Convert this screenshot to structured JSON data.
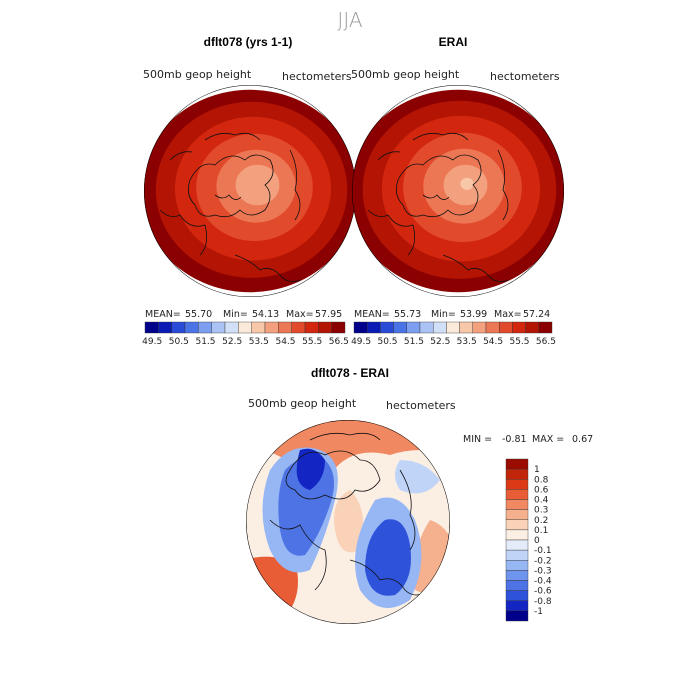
{
  "figure_title": "JJA",
  "panels": [
    {
      "id": "model",
      "title": "dflt078 (yrs 1-1)",
      "variable": "500mb geop height",
      "units": "hectometers",
      "stats": {
        "mean_label": "MEAN=",
        "mean": "55.70",
        "min_label": "Min=",
        "min": "54.13",
        "max_label": "Max=",
        "max": "57.95"
      }
    },
    {
      "id": "obs",
      "title": "ERAI",
      "variable": "500mb geop height",
      "units": "hectometers",
      "stats": {
        "mean_label": "MEAN=",
        "mean": "55.73",
        "min_label": "Min=",
        "min": "53.99",
        "max_label": "Max=",
        "max": "57.24"
      }
    },
    {
      "id": "diff",
      "title": "dflt078 - ERAI",
      "variable": "500mb geop height",
      "units": "hectometers",
      "stats": {
        "min_label": "MIN =",
        "min": "-0.81",
        "max_label": "MAX =",
        "max": "0.67"
      }
    }
  ],
  "colorbar_abs": {
    "colors": [
      "#00008b",
      "#0a1ab5",
      "#2a4bd7",
      "#4a73e6",
      "#7c9ef0",
      "#aac2f4",
      "#d2e0f7",
      "#fbe9da",
      "#f7c7a8",
      "#f2a07e",
      "#ec7754",
      "#e24a2c",
      "#d2260f",
      "#b31404",
      "#8b0000"
    ],
    "ticks": [
      "49.5",
      "50.5",
      "51.5",
      "52.5",
      "53.5",
      "54.5",
      "55.5",
      "56.5"
    ]
  },
  "colorbar_diff": {
    "colors": [
      "#00008b",
      "#1326c4",
      "#2e52d9",
      "#4d73e5",
      "#6f94ee",
      "#97b6f4",
      "#c0d4f8",
      "#e4ecf9",
      "#fbefe4",
      "#f9d2b8",
      "#f5b08d",
      "#f08862",
      "#e95d36",
      "#dc3a16",
      "#c22509",
      "#9b0c00"
    ],
    "ticks": [
      "1",
      "0.8",
      "0.6",
      "0.4",
      "0.3",
      "0.2",
      "0.1",
      "0",
      "-0.1",
      "-0.2",
      "-0.3",
      "-0.4",
      "-0.6",
      "-0.8",
      "-1"
    ]
  },
  "maps": {
    "model_field": [
      {
        "rx": 1.0,
        "color": "#8b0000"
      },
      {
        "rx": 0.87,
        "color": "#b31404"
      },
      {
        "rx": 0.71,
        "color": "#d2260f"
      },
      {
        "rx": 0.53,
        "color": "#e24a2c"
      },
      {
        "rx": 0.36,
        "color": "#ec7754"
      },
      {
        "rx": 0.2,
        "color": "#f2a07e"
      }
    ],
    "obs_field": [
      {
        "rx": 1.0,
        "color": "#8b0000"
      },
      {
        "rx": 0.88,
        "color": "#b31404"
      },
      {
        "rx": 0.72,
        "color": "#d2260f"
      },
      {
        "rx": 0.54,
        "color": "#e24a2c"
      },
      {
        "rx": 0.37,
        "color": "#ec7754"
      },
      {
        "rx": 0.2,
        "color": "#f2a07e"
      },
      {
        "rx": 0.06,
        "color": "#f7c7a8"
      }
    ]
  }
}
